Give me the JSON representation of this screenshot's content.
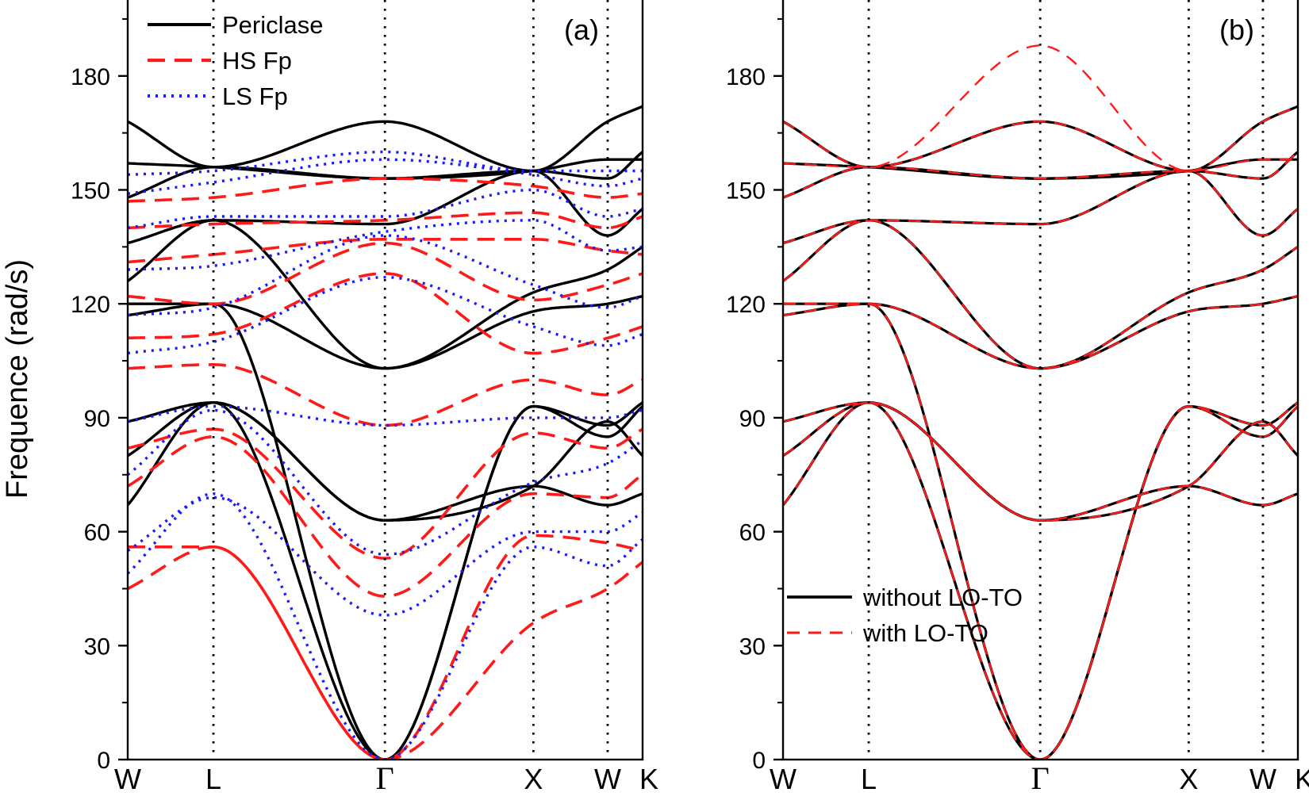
{
  "figure": {
    "ylabel": "Frequence (rad/s)",
    "yticks": [
      0,
      30,
      60,
      90,
      120,
      150,
      180
    ],
    "ylim": [
      0,
      200
    ],
    "kpoints": [
      {
        "label": "W",
        "x": 0.0
      },
      {
        "label": "L",
        "x": 0.866
      },
      {
        "label": "Γ",
        "x": 2.598
      },
      {
        "label": "X",
        "x": 4.098
      },
      {
        "label": "W",
        "x": 4.848
      },
      {
        "label": "K",
        "x": 5.201
      }
    ],
    "xlim": [
      0,
      5.201
    ]
  },
  "chart_data": [
    {
      "type": "line",
      "panel": "(a)",
      "title": "(a)",
      "xlabel": "",
      "ylabel": "Frequence (rad/s)",
      "ylim": [
        0,
        200
      ],
      "legend": [
        "Periclase",
        "HS Fp",
        "LS Fp"
      ],
      "colors": {
        "Periclase": "#000000",
        "HS Fp": "#ff1a1a",
        "LS Fp": "#1a1aff"
      },
      "kpath": [
        0.0,
        0.866,
        2.598,
        4.098,
        4.848,
        5.201
      ],
      "series": [
        {
          "name": "Periclase",
          "bands": [
            [
              67,
              94,
              63,
              72,
              67,
              70
            ],
            [
              80,
              94,
              63,
              72,
              89,
              80
            ],
            [
              89,
              94,
              0,
              93,
              85,
              93
            ],
            [
              117,
              120,
              0,
              93,
              88,
              94
            ],
            [
              120,
              120,
              103,
              118,
              120,
              122
            ],
            [
              126,
              142,
              103,
              123,
              129,
              135
            ],
            [
              136,
              142,
              141,
              155,
              138,
              145
            ],
            [
              148,
              156,
              153,
              155,
              153,
              160
            ],
            [
              157,
              156,
              153,
              155,
              158,
              158
            ],
            [
              168,
              156,
              168,
              155,
              168,
              172
            ]
          ]
        },
        {
          "name": "HS Fp",
          "bands": [
            [
              45,
              56,
              0,
              36,
              45,
              52
            ],
            [
              56,
              56,
              0,
              59,
              57,
              55
            ],
            [
              72,
              85,
              43,
              70,
              69,
              75
            ],
            [
              82,
              87,
              53,
              86,
              82,
              87
            ],
            [
              103,
              104,
              88,
              100,
              96,
              100
            ],
            [
              111,
              112,
              128,
              107,
              111,
              114
            ],
            [
              122,
              120,
              136,
              121,
              125,
              128
            ],
            [
              131,
              133,
              137,
              137,
              134,
              133
            ],
            [
              140,
              141,
              142,
              144,
              140,
              143
            ],
            [
              147,
              148,
              153,
              151,
              148,
              149
            ]
          ]
        },
        {
          "name": "LS Fp",
          "bands": [
            [
              49,
              70,
              0,
              56,
              51,
              58
            ],
            [
              55,
              69,
              38,
              60,
              60,
              65
            ],
            [
              75,
              92,
              54,
              73,
              78,
              84
            ],
            [
              89,
              93,
              88,
              90,
              90,
              92
            ],
            [
              107,
              110,
              127,
              114,
              109,
              112
            ],
            [
              117,
              119,
              138,
              125,
              119,
              122
            ],
            [
              129,
              130,
              139,
              142,
              134,
              135
            ],
            [
              140,
              143,
              143,
              150,
              143,
              145
            ],
            [
              149,
              152,
              158,
              154,
              151,
              153
            ],
            [
              154,
              155,
              160,
              155,
              155,
              155
            ]
          ]
        }
      ]
    },
    {
      "type": "line",
      "panel": "(b)",
      "title": "(b)",
      "xlabel": "",
      "ylabel": "Frequence (rad/s)",
      "ylim": [
        0,
        200
      ],
      "legend": [
        "without LO-TO",
        "with LO-TO"
      ],
      "colors": {
        "without LO-TO": "#000000",
        "with LO-TO": "#ff1a1a"
      },
      "kpath": [
        0.0,
        0.866,
        2.598,
        4.098,
        4.848,
        5.201
      ],
      "series": [
        {
          "name": "without LO-TO",
          "bands": [
            [
              67,
              94,
              63,
              72,
              67,
              70
            ],
            [
              80,
              94,
              63,
              72,
              89,
              80
            ],
            [
              89,
              94,
              0,
              93,
              85,
              93
            ],
            [
              117,
              120,
              0,
              93,
              88,
              94
            ],
            [
              120,
              120,
              103,
              118,
              120,
              122
            ],
            [
              126,
              142,
              103,
              123,
              129,
              135
            ],
            [
              136,
              142,
              141,
              155,
              138,
              145
            ],
            [
              148,
              156,
              153,
              155,
              153,
              160
            ],
            [
              157,
              156,
              153,
              155,
              158,
              158
            ],
            [
              168,
              156,
              168,
              155,
              168,
              172
            ]
          ]
        },
        {
          "name": "with LO-TO",
          "bands": [
            [
              67,
              94,
              63,
              72,
              67,
              70
            ],
            [
              80,
              94,
              63,
              72,
              89,
              80
            ],
            [
              89,
              94,
              0,
              93,
              85,
              93
            ],
            [
              117,
              120,
              0,
              93,
              88,
              94
            ],
            [
              120,
              120,
              103,
              118,
              120,
              122
            ],
            [
              126,
              142,
              103,
              123,
              129,
              135
            ],
            [
              136,
              142,
              141,
              155,
              138,
              145
            ],
            [
              148,
              156,
              153,
              155,
              153,
              160
            ],
            [
              157,
              156,
              168,
              155,
              158,
              158
            ],
            [
              168,
              156,
              188,
              155,
              168,
              172
            ]
          ]
        }
      ]
    }
  ]
}
